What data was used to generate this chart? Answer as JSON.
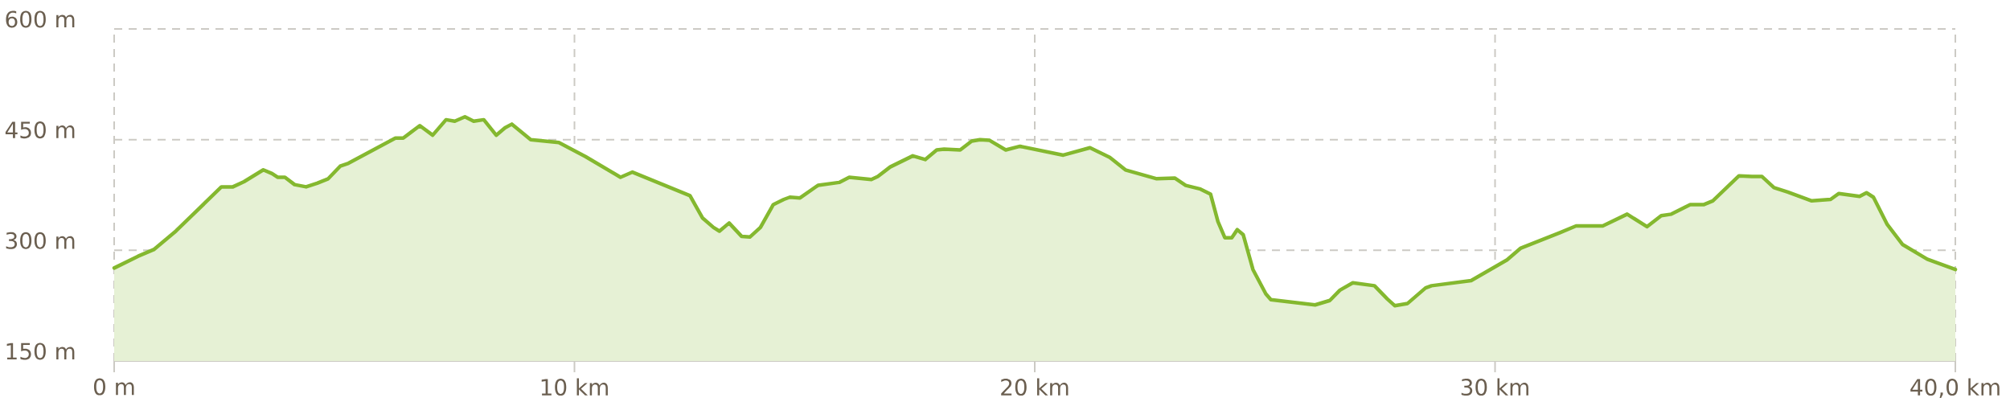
{
  "chart_data": {
    "type": "area",
    "xlim": [
      0,
      40
    ],
    "ylim": [
      150,
      600
    ],
    "xticks": [
      {
        "value": 0,
        "label": "0 m"
      },
      {
        "value": 10,
        "label": "10 km"
      },
      {
        "value": 20,
        "label": "20 km"
      },
      {
        "value": 30,
        "label": "30 km"
      },
      {
        "value": 40,
        "label": "40,0 km"
      }
    ],
    "yticks": [
      {
        "value": 150,
        "label": "150 m"
      },
      {
        "value": 300,
        "label": "300 m"
      },
      {
        "value": 450,
        "label": "450 m"
      },
      {
        "value": 600,
        "label": "600 m"
      }
    ],
    "grid": true,
    "line_style": "solid",
    "series": [
      {
        "color": "#84b82f",
        "x": [
          0,
          0.52,
          0.86,
          1.34,
          2.33,
          2.58,
          2.82,
          3.24,
          3.43,
          3.55,
          3.71,
          3.92,
          4.17,
          4.41,
          4.65,
          4.91,
          5.09,
          6.11,
          6.28,
          6.64,
          6.92,
          7.21,
          7.4,
          7.62,
          7.81,
          8.03,
          8.3,
          8.49,
          8.64,
          9.05,
          9.66,
          10.24,
          11.0,
          11.26,
          12.51,
          12.78,
          13.02,
          13.15,
          13.36,
          13.63,
          13.81,
          14.04,
          14.32,
          14.55,
          14.68,
          14.9,
          15.29,
          15.75,
          15.97,
          16.45,
          16.59,
          16.86,
          17.35,
          17.62,
          17.87,
          18.03,
          18.38,
          18.63,
          18.81,
          19.02,
          19.37,
          19.68,
          20.62,
          21.2,
          21.63,
          21.97,
          22.65,
          23.04,
          23.28,
          23.6,
          23.82,
          23.98,
          24.13,
          24.28,
          24.4,
          24.53,
          24.74,
          25.02,
          25.13,
          26.09,
          26.41,
          26.63,
          26.91,
          27.38,
          27.66,
          27.82,
          28.1,
          28.49,
          28.62,
          29.48,
          29.98,
          30.26,
          30.56,
          31.41,
          31.76,
          32.34,
          32.87,
          33.3,
          33.61,
          33.83,
          34.24,
          34.54,
          34.73,
          35.3,
          35.58,
          35.8,
          36.06,
          36.36,
          36.88,
          37.29,
          37.47,
          37.92,
          38.07,
          38.22,
          38.52,
          38.85,
          39.39,
          40.0
        ],
        "values": [
          276,
          292,
          301,
          326,
          386,
          386,
          393,
          409,
          404,
          399,
          399,
          389,
          386,
          391,
          397,
          414,
          418,
          452,
          452,
          469,
          456,
          477,
          475,
          481,
          475,
          477,
          456,
          466,
          471,
          450,
          446,
          427,
          399,
          406,
          374,
          344,
          331,
          326,
          337,
          319,
          318,
          331,
          362,
          369,
          372,
          371,
          388,
          392,
          399,
          396,
          400,
          413,
          428,
          423,
          436,
          437,
          436,
          448,
          450,
          449,
          436,
          441,
          429,
          439,
          426,
          409,
          397,
          398,
          388,
          383,
          376,
          339,
          317,
          317,
          328,
          321,
          274,
          241,
          233,
          226,
          232,
          246,
          256,
          252,
          234,
          225,
          228,
          249,
          252,
          259,
          277,
          287,
          303,
          324,
          333,
          333,
          349,
          332,
          347,
          349,
          362,
          362,
          367,
          401,
          400,
          400,
          385,
          379,
          367,
          369,
          377,
          373,
          378,
          372,
          335,
          308,
          288,
          274
        ]
      }
    ]
  }
}
